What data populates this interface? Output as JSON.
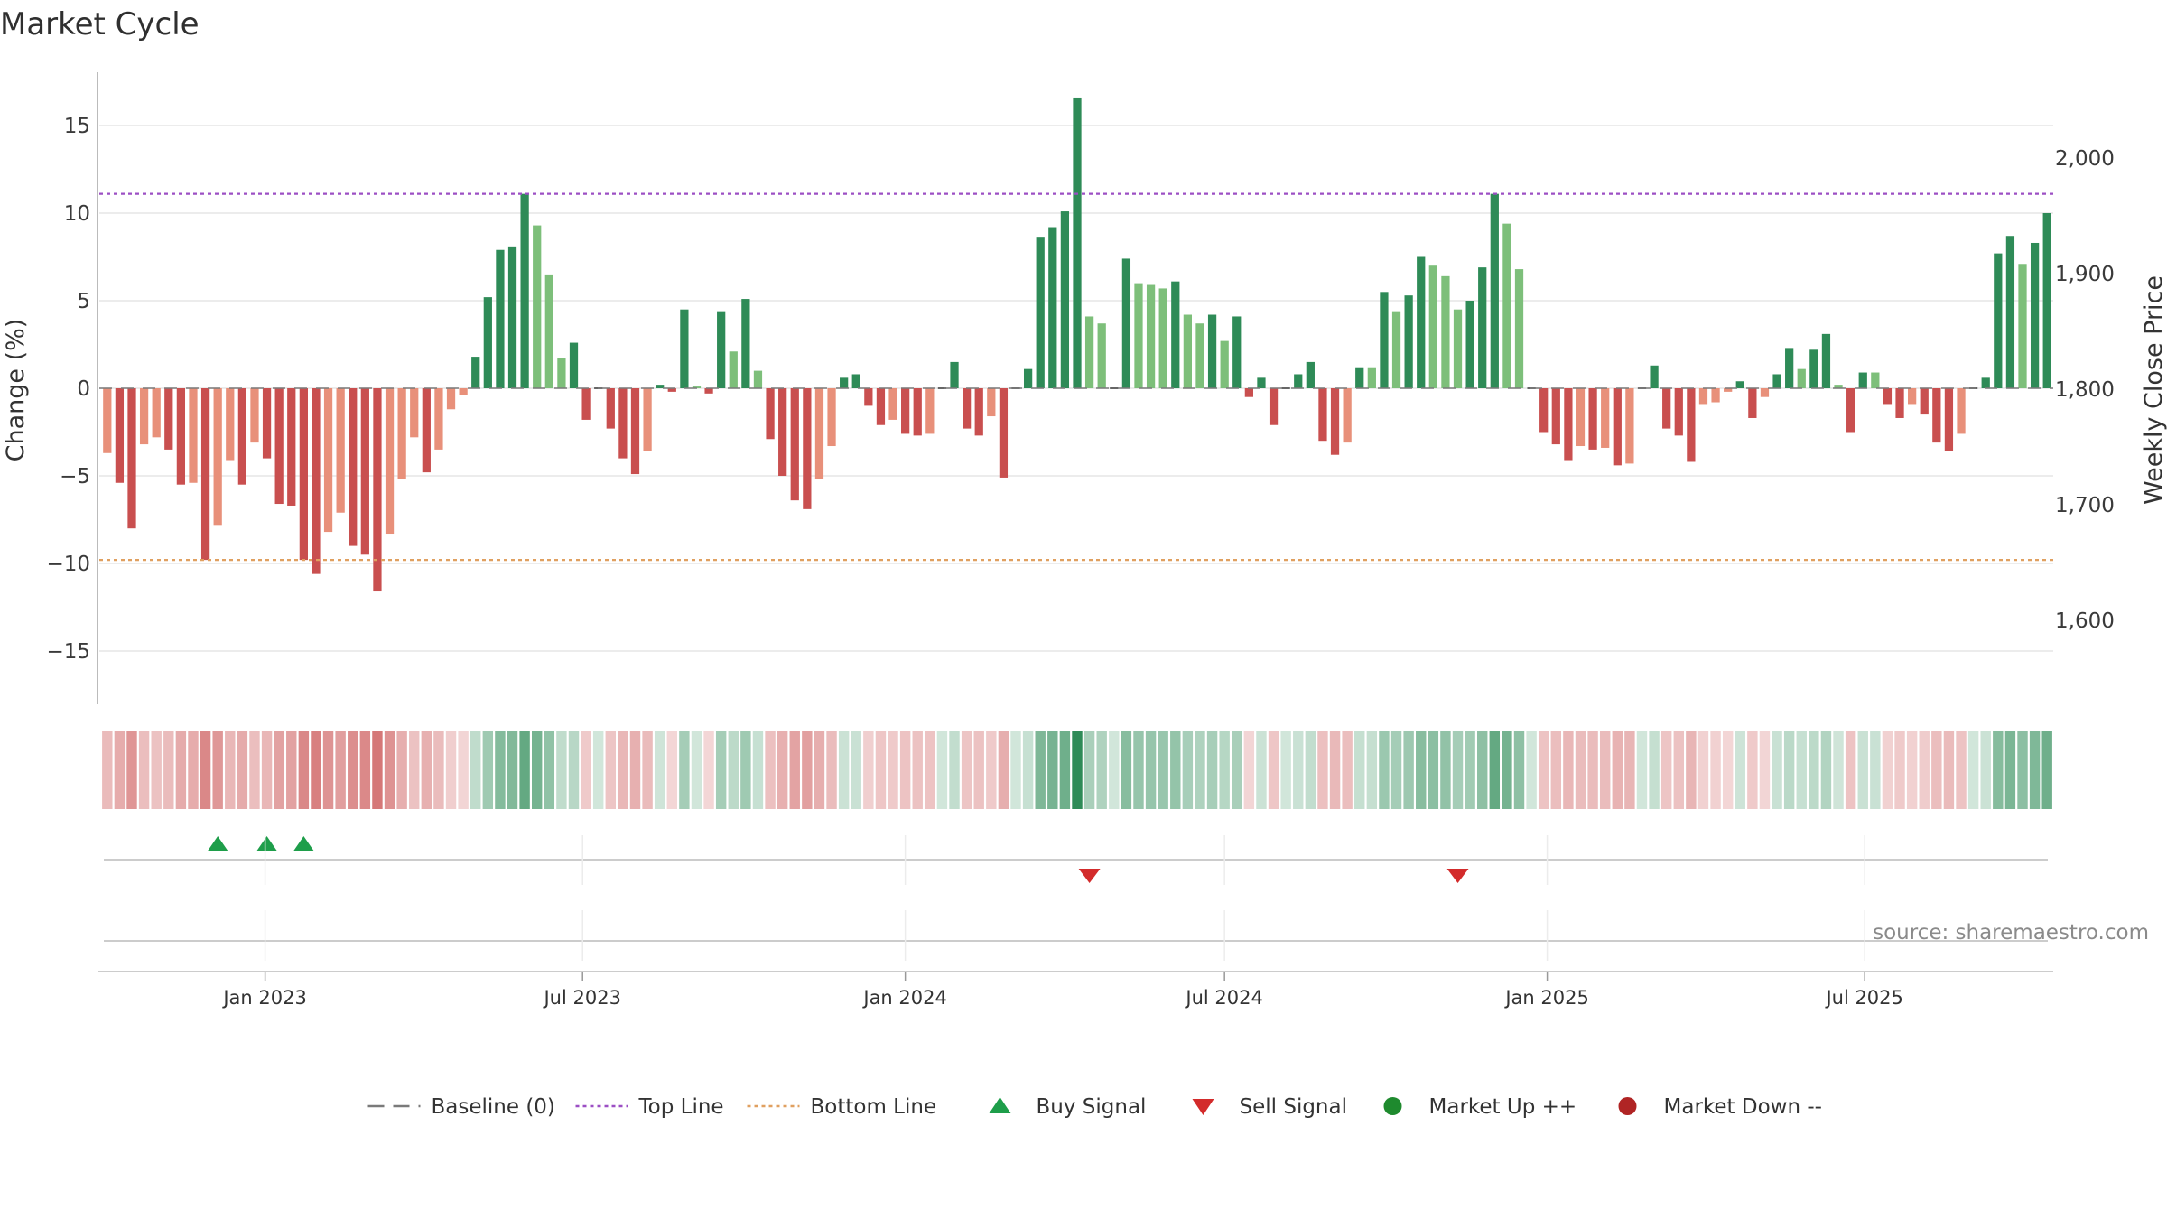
{
  "chart_data": {
    "type": "bar",
    "title": "Market Cycle",
    "ylabel_left": "Change (%)",
    "ylabel_right": "Weekly Close Price",
    "ylim_left": [
      -18,
      18
    ],
    "ylim_right": [
      1540,
      2020
    ],
    "yticks_left": [
      {
        "value": 15,
        "label": "15"
      },
      {
        "value": 10,
        "label": "10"
      },
      {
        "value": 5,
        "label": "5"
      },
      {
        "value": 0,
        "label": "0"
      },
      {
        "value": -5,
        "label": "−5"
      },
      {
        "value": -10,
        "label": "−10"
      },
      {
        "value": -15,
        "label": "−15"
      }
    ],
    "yticks_right": [
      {
        "value": 2000,
        "label": "2,000"
      },
      {
        "value": 1900,
        "label": "1,900"
      },
      {
        "value": 1800,
        "label": "1,800"
      },
      {
        "value": 1700,
        "label": "1,700"
      },
      {
        "value": 1600,
        "label": "1,600"
      }
    ],
    "top_line": 11.1,
    "bottom_line": -9.8,
    "x_start": "2022-10-03",
    "xticks": [
      {
        "date": "2023-01-01",
        "label": "Jan 2023"
      },
      {
        "date": "2023-07-01",
        "label": "Jul 2023"
      },
      {
        "date": "2024-01-01",
        "label": "Jan 2024"
      },
      {
        "date": "2024-07-01",
        "label": "Jul 2024"
      },
      {
        "date": "2025-01-01",
        "label": "Jan 2025"
      },
      {
        "date": "2025-07-01",
        "label": "Jul 2025"
      }
    ],
    "values": [
      -3.7,
      -5.4,
      -8.0,
      -3.2,
      -2.8,
      -3.5,
      -5.5,
      -5.4,
      -9.8,
      -7.8,
      -4.1,
      -5.5,
      -3.1,
      -4.0,
      -6.6,
      -6.7,
      -9.8,
      -10.6,
      -8.2,
      -7.1,
      -9.0,
      -9.5,
      -11.6,
      -8.3,
      -5.2,
      -2.8,
      -4.8,
      -3.5,
      -1.2,
      -0.4,
      1.8,
      5.2,
      7.9,
      8.1,
      11.1,
      9.3,
      6.5,
      1.7,
      2.6,
      -1.8,
      0,
      -2.3,
      -4.0,
      -4.9,
      -3.6,
      0.2,
      -0.2,
      4.5,
      0.1,
      -0.3,
      4.4,
      2.1,
      5.1,
      1.0,
      -2.9,
      -5.0,
      -6.4,
      -6.9,
      -5.2,
      -3.3,
      0.6,
      0.8,
      -1.0,
      -2.1,
      -1.8,
      -2.6,
      -2.7,
      -2.6,
      0,
      1.5,
      -2.3,
      -2.7,
      -1.6,
      -5.1,
      0,
      1.1,
      8.6,
      9.2,
      10.1,
      16.6,
      4.1,
      3.7,
      0,
      7.4,
      6.0,
      5.9,
      5.7,
      6.1,
      4.2,
      3.7,
      4.2,
      2.7,
      4.1,
      -0.5,
      0.6,
      -2.1,
      0,
      0.8,
      1.5,
      -3.0,
      -3.8,
      -3.1,
      1.2,
      1.2,
      5.5,
      4.4,
      5.3,
      7.5,
      7.0,
      6.4,
      4.5,
      5.0,
      6.9,
      11.1,
      9.4,
      6.8,
      0,
      -2.5,
      -3.2,
      -4.1,
      -3.3,
      -3.5,
      -3.4,
      -4.4,
      -4.3,
      0,
      1.3,
      -2.3,
      -2.7,
      -4.2,
      -0.9,
      -0.8,
      -0.2,
      0.4,
      -1.7,
      -0.5,
      0.8,
      2.3,
      1.1,
      2.2,
      3.1,
      0.2,
      -2.5,
      0.9,
      0.9,
      -0.9,
      -1.7,
      -0.9,
      -1.5,
      -3.1,
      -3.6,
      -2.6,
      0,
      0.6,
      7.7,
      8.7,
      7.1,
      8.3,
      10.0
    ],
    "buy_signals": [
      "2022-12-05",
      "2023-01-02",
      "2023-01-23"
    ],
    "sell_signals": [
      "2024-04-15",
      "2024-11-11"
    ],
    "colors": {
      "down_strong": "#c94f4f",
      "down_light": "#e8907a",
      "up_strong": "#2e8b57",
      "up_light": "#7dbf7a",
      "buy": "#1e9e4a",
      "sell": "#d32b2b",
      "top_line": "#9c4fc4",
      "bottom_line": "#e0a060",
      "baseline": "#7a7a7a"
    },
    "source_text": "source: sharemaestro.com",
    "legend": [
      {
        "key": "baseline",
        "label": "Baseline (0)"
      },
      {
        "key": "top",
        "label": "Top Line"
      },
      {
        "key": "bottom",
        "label": "Bottom Line"
      },
      {
        "key": "buy",
        "label": "Buy Signal"
      },
      {
        "key": "sell",
        "label": "Sell Signal"
      },
      {
        "key": "up",
        "label": "Market Up ++"
      },
      {
        "key": "down",
        "label": "Market Down --"
      }
    ]
  }
}
